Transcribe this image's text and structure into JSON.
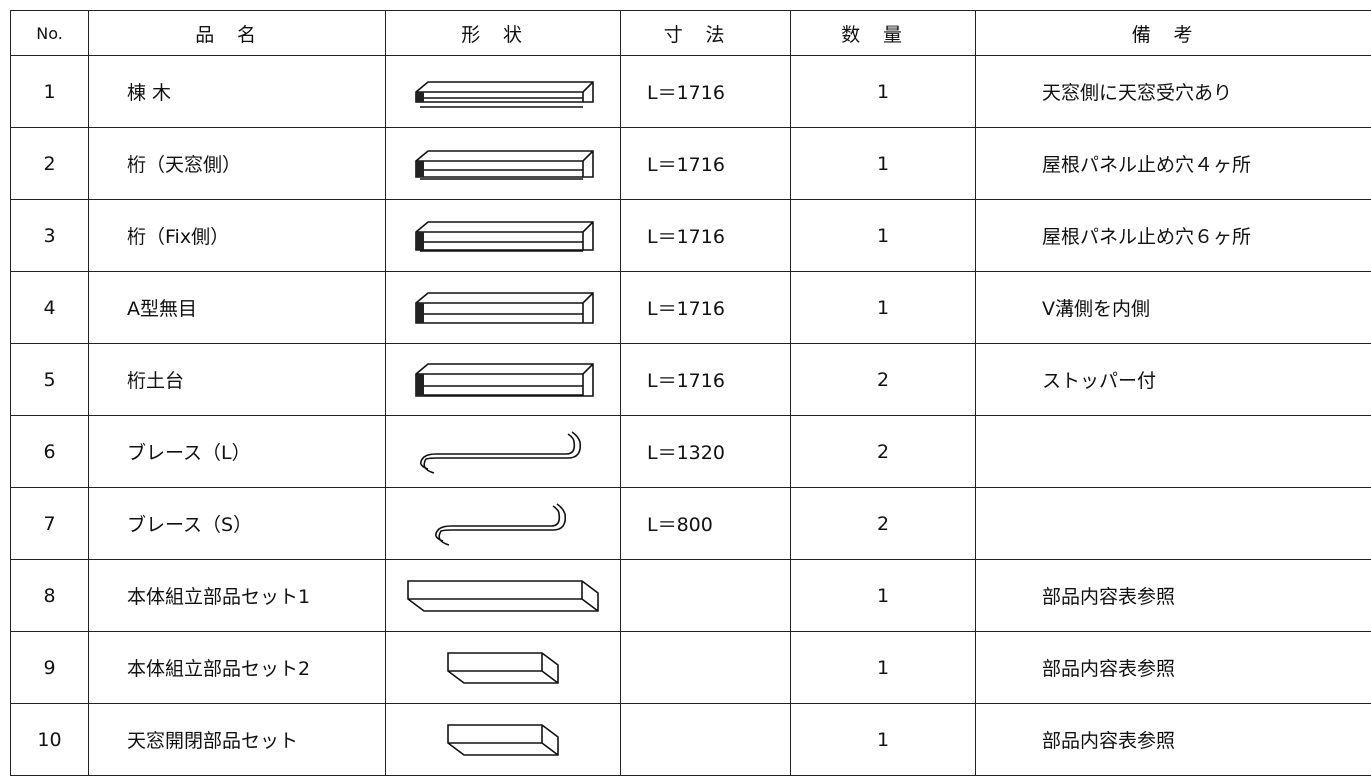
{
  "table": {
    "header": [
      "No.",
      "品名",
      "形状",
      "寸法",
      "数量",
      "備考"
    ],
    "rows": [
      {
        "no": 1,
        "name": "棟 木",
        "size": "L＝1716",
        "qty": 1,
        "note": "天窓側に天窓受穴あり"
      },
      {
        "no": 2,
        "name": "桁（天窓側）",
        "size": "L＝1716",
        "qty": 1,
        "note": "屋根パネル止め穴４ヶ所"
      },
      {
        "no": 3,
        "name": "桁（Fix側）",
        "size": "L＝1716",
        "qty": 1,
        "note": "屋根パネル止め穴６ヶ所"
      },
      {
        "no": 4,
        "name": "A型無目",
        "size": "L＝1716",
        "qty": 1,
        "note": "V溝側を内側"
      },
      {
        "no": 5,
        "name": "桁土台",
        "size": "L＝1716",
        "qty": 2,
        "note": "ストッパー付"
      },
      {
        "no": 6,
        "name": "ブレース（L）",
        "size": "L＝1320",
        "qty": 2
      },
      {
        "no": 7,
        "name": "ブレース（S）",
        "size": "L＝800",
        "qty": 2
      },
      {
        "no": 8,
        "name": "本体組立部品セット1",
        "qty": 1,
        "note": "部品内容表参照"
      },
      {
        "no": 9,
        "name": "本体組立部品セット2",
        "qty": 1,
        "note": "部品内容表参照"
      },
      {
        "no": 10,
        "name": "天窓開閉部品セット",
        "qty": 1,
        "note": "部品内容表参照"
      }
    ]
  }
}
